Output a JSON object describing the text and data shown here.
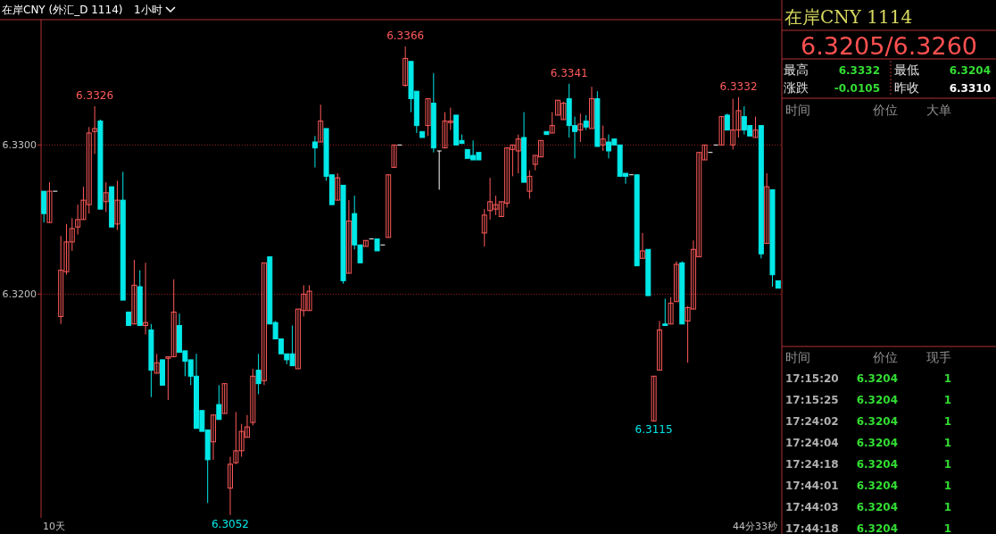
{
  "chart_data": [
    {
      "type": "candlestick",
      "title": "在岸CNY (外汇_D 1114)",
      "subtitle": "1小时",
      "categories": [
        null,
        null,
        null,
        null,
        null,
        null,
        null,
        null,
        null,
        null,
        null,
        null,
        null,
        null,
        null,
        null,
        null,
        null,
        null,
        null,
        null,
        null,
        null,
        null,
        null,
        null,
        null,
        null,
        null,
        null,
        null,
        null,
        null,
        null,
        null,
        null,
        null,
        null,
        null,
        null,
        null,
        null,
        null,
        null,
        null,
        null,
        null,
        null,
        null,
        null,
        null,
        null,
        null,
        null,
        null,
        null,
        null,
        null,
        null,
        null,
        null,
        null,
        null,
        null,
        null,
        null,
        null,
        null,
        null,
        null,
        null,
        null,
        null,
        null,
        null,
        null,
        null,
        null,
        null,
        null,
        null,
        null,
        null,
        null,
        null,
        null,
        null,
        null,
        null,
        null,
        null,
        null,
        null,
        null,
        null,
        null,
        null,
        null,
        null,
        null,
        null,
        null,
        null,
        null,
        null,
        null,
        null,
        null,
        null,
        null,
        null,
        null,
        null,
        null,
        null,
        null,
        null,
        null,
        null,
        null,
        null,
        null,
        null,
        null,
        null,
        null,
        null,
        null,
        null,
        null,
        null
      ],
      "ohlc": [
        [
          6.3269,
          6.3269,
          6.3248,
          6.3254
        ],
        [
          6.3248,
          6.3275,
          6.3248,
          6.3269
        ],
        [
          6.3269,
          6.3269,
          6.3269,
          6.3269
        ],
        [
          6.3185,
          6.3239,
          6.318,
          6.3216
        ],
        [
          6.3215,
          6.3247,
          6.3213,
          6.3235
        ],
        [
          6.3235,
          6.3251,
          6.3229,
          6.3244
        ],
        [
          6.3245,
          6.326,
          6.324,
          6.325
        ],
        [
          6.325,
          6.3272,
          6.325,
          6.3263
        ],
        [
          6.326,
          6.3312,
          6.3254,
          6.3308
        ],
        [
          6.3309,
          6.3326,
          6.3294,
          6.3311
        ],
        [
          6.3316,
          6.3317,
          6.3257,
          6.3257
        ],
        [
          6.3262,
          6.3275,
          6.3255,
          6.3268
        ],
        [
          6.3272,
          6.3272,
          6.3245,
          6.3245
        ],
        [
          6.3247,
          6.3276,
          6.3243,
          6.3263
        ],
        [
          6.3263,
          6.3282,
          6.3196,
          6.3196
        ],
        [
          6.3188,
          6.3188,
          6.3179,
          6.3179
        ],
        [
          6.318,
          6.3223,
          6.318,
          6.3206
        ],
        [
          6.3205,
          6.3216,
          6.3179,
          6.3179
        ],
        [
          6.3179,
          6.3221,
          6.3173,
          6.3181
        ],
        [
          6.3176,
          6.318,
          6.3131,
          6.3149
        ],
        [
          6.3147,
          6.316,
          6.3147,
          6.3154
        ],
        [
          6.3156,
          6.3156,
          6.3139,
          6.3139
        ],
        [
          6.3157,
          6.3158,
          6.3129,
          6.3158
        ],
        [
          6.3158,
          6.321,
          6.3158,
          6.3188
        ],
        [
          6.3179,
          6.3187,
          6.3161,
          6.3161
        ],
        [
          6.3162,
          6.3162,
          6.3145,
          6.3155
        ],
        [
          6.3156,
          6.3156,
          6.3139,
          6.3145
        ],
        [
          6.3145,
          6.316,
          6.311,
          6.311
        ],
        [
          6.3122,
          6.3122,
          6.3108,
          6.3108
        ],
        [
          6.3109,
          6.3109,
          6.306,
          6.3089
        ],
        [
          6.3101,
          6.3119,
          6.3089,
          6.3119
        ],
        [
          6.3126,
          6.3139,
          6.3116,
          6.3116
        ],
        [
          6.312,
          6.314,
          6.312,
          6.314
        ],
        [
          6.307,
          6.3091,
          6.3052,
          6.3086
        ],
        [
          6.3087,
          6.3121,
          6.3086,
          6.3095
        ],
        [
          6.3095,
          6.3113,
          6.3091,
          6.3108
        ],
        [
          6.3104,
          6.3119,
          6.3104,
          6.3111
        ],
        [
          6.3114,
          6.315,
          6.3112,
          6.3145
        ],
        [
          6.3149,
          6.316,
          6.3133,
          6.314
        ],
        [
          6.3142,
          6.3221,
          6.3139,
          6.3221
        ],
        [
          6.3225,
          6.3225,
          6.318,
          6.318
        ],
        [
          6.3181,
          6.3182,
          6.317,
          6.317
        ],
        [
          6.317,
          6.317,
          6.316,
          6.316
        ],
        [
          6.316,
          6.316,
          6.3153,
          6.3156
        ],
        [
          6.316,
          6.3179,
          6.3152,
          6.3152
        ],
        [
          6.315,
          6.319,
          6.315,
          6.319
        ],
        [
          6.3189,
          6.3206,
          6.3185,
          6.32
        ],
        [
          6.3189,
          6.3206,
          6.3189,
          6.3202
        ],
        [
          6.3302,
          6.3306,
          6.3285,
          6.3298
        ],
        [
          6.3302,
          6.3327,
          6.3302,
          6.3316
        ],
        [
          6.3311,
          6.3311,
          6.3276,
          6.3279
        ],
        [
          6.328,
          6.328,
          6.326,
          6.326
        ],
        [
          6.3263,
          6.3281,
          6.3263,
          6.3278
        ],
        [
          6.3273,
          6.3273,
          6.3207,
          6.3209
        ],
        [
          6.3214,
          6.3263,
          6.3214,
          6.3249
        ],
        [
          6.3254,
          6.3266,
          6.323,
          6.3233
        ],
        [
          6.3233,
          6.3233,
          6.3221,
          6.3221
        ],
        [
          6.3232,
          6.3236,
          6.3232,
          6.3236
        ],
        [
          6.3237,
          6.3237,
          6.3237,
          6.3237
        ],
        [
          6.3237,
          6.3237,
          6.3229,
          6.3229
        ],
        [
          6.3233,
          6.3233,
          6.3233,
          6.3233
        ],
        [
          6.3238,
          6.328,
          6.3238,
          6.328
        ],
        [
          6.3285,
          6.33,
          6.3285,
          6.33
        ],
        [
          6.33,
          6.33,
          6.33,
          6.33
        ],
        [
          6.334,
          6.3366,
          6.3339,
          6.3358
        ],
        [
          6.3356,
          6.3356,
          6.3322,
          6.3331
        ],
        [
          6.3336,
          6.3336,
          6.3308,
          6.3313
        ],
        [
          6.3309,
          6.3309,
          6.3305,
          6.3305
        ],
        [
          6.3313,
          6.3331,
          6.3306,
          6.3331
        ],
        [
          6.3328,
          6.3348,
          6.3295,
          6.3298
        ],
        [
          6.3296,
          6.3296,
          6.327,
          6.3296
        ],
        [
          6.3298,
          6.3322,
          6.3298,
          6.3316
        ],
        [
          6.3315,
          6.3325,
          6.331,
          6.3316
        ],
        [
          6.332,
          6.332,
          6.33,
          6.33
        ],
        [
          6.3303,
          6.3307,
          6.3301,
          6.3301
        ],
        [
          6.3297,
          6.3297,
          6.3291,
          6.3291
        ],
        [
          6.3293,
          6.3303,
          6.329,
          6.329
        ],
        [
          6.3295,
          6.3295,
          6.329,
          6.329
        ],
        [
          6.3241,
          6.3257,
          6.3232,
          6.3253
        ],
        [
          6.3256,
          6.3278,
          6.325,
          6.3262
        ],
        [
          6.3257,
          6.3266,
          6.3253,
          6.326
        ],
        [
          6.3252,
          6.3262,
          6.3252,
          6.3262
        ],
        [
          6.3261,
          6.3298,
          6.3258,
          6.3298
        ],
        [
          6.3297,
          6.33,
          6.3279,
          6.33
        ],
        [
          6.3296,
          6.3307,
          6.3281,
          6.3304
        ],
        [
          6.3305,
          6.3322,
          6.3275,
          6.3275
        ],
        [
          6.3269,
          6.3283,
          6.3264,
          6.3279
        ],
        [
          6.3287,
          6.3293,
          6.3283,
          6.3293
        ],
        [
          6.3292,
          6.3303,
          6.3292,
          6.3303
        ],
        [
          6.3309,
          6.3309,
          6.3307,
          6.3307
        ],
        [
          6.3308,
          6.3322,
          6.3308,
          6.3313
        ],
        [
          6.332,
          6.333,
          6.332,
          6.333
        ],
        [
          6.3317,
          6.3329,
          6.3317,
          6.3328
        ],
        [
          6.3331,
          6.3341,
          6.3305,
          6.3313
        ],
        [
          6.3313,
          6.3319,
          6.3291,
          6.3309
        ],
        [
          6.331,
          6.3321,
          6.3302,
          6.3314
        ],
        [
          6.3316,
          6.332,
          6.331,
          6.3312
        ],
        [
          6.3311,
          6.3339,
          6.3311,
          6.3331
        ],
        [
          6.3331,
          6.3336,
          6.3299,
          6.3299
        ],
        [
          6.33,
          6.3313,
          6.3296,
          6.3304
        ],
        [
          6.3302,
          6.3307,
          6.3291,
          6.3296
        ],
        [
          6.3304,
          6.3304,
          6.33,
          6.33
        ],
        [
          6.33,
          6.33,
          6.3279,
          6.3279
        ],
        [
          6.3281,
          6.3281,
          6.3274,
          6.3279
        ],
        [
          6.328,
          6.328,
          6.328,
          6.328
        ],
        [
          6.328,
          6.328,
          6.3219,
          6.3219
        ],
        [
          6.3224,
          6.3241,
          6.3224,
          6.3229
        ],
        [
          6.323,
          6.323,
          6.3199,
          6.3199
        ],
        [
          6.3115,
          6.3145,
          6.3115,
          6.3145
        ],
        [
          6.3149,
          6.3182,
          6.3149,
          6.3176
        ],
        [
          6.318,
          6.3197,
          6.3179,
          6.3179
        ],
        [
          6.318,
          6.3198,
          6.318,
          6.3194
        ],
        [
          6.3195,
          6.3222,
          6.3195,
          6.322
        ],
        [
          6.3221,
          6.3222,
          6.318,
          6.318
        ],
        [
          6.3182,
          6.3192,
          6.3154,
          6.3191
        ],
        [
          6.319,
          6.3236,
          6.319,
          6.323
        ],
        [
          6.3225,
          6.3295,
          6.3225,
          6.3295
        ],
        [
          6.329,
          6.33,
          6.329,
          6.33
        ],
        [
          6.3295,
          6.3295,
          6.3295,
          6.3295
        ],
        [
          6.33,
          6.33,
          6.33,
          6.33
        ],
        [
          6.33,
          6.3319,
          6.33,
          6.3319
        ],
        [
          6.332,
          6.3321,
          6.331,
          6.331
        ],
        [
          6.33,
          6.3331,
          6.3297,
          6.331
        ],
        [
          6.331,
          6.3332,
          6.3305,
          6.3323
        ],
        [
          6.3319,
          6.3326,
          6.3307,
          6.331
        ],
        [
          6.3313,
          6.3313,
          6.3306,
          6.3306
        ],
        [
          6.3305,
          6.3319,
          6.3305,
          6.331
        ],
        [
          6.3313,
          6.3313,
          6.3224,
          6.3227
        ],
        [
          6.3234,
          6.3281,
          6.3234,
          6.3272
        ],
        [
          6.327,
          6.327,
          6.3205,
          6.3213
        ],
        [
          6.3209,
          6.3209,
          6.3204,
          6.3204
        ]
      ],
      "ylim": [
        6.305,
        6.3384
      ],
      "yticks": [
        {
          "value": 6.33,
          "label": "6.3300"
        },
        {
          "value": 6.32,
          "label": "6.3200"
        }
      ],
      "grid": "y",
      "annotations": [
        {
          "text": "6.3326",
          "y": 6.3326
        },
        {
          "text": "6.3366",
          "y": 6.3366
        },
        {
          "text": "6.3341",
          "y": 6.3341
        },
        {
          "text": "6.3332",
          "y": 6.3332
        },
        {
          "text": "6.3052",
          "y": 6.3052
        },
        {
          "text": "6.3115",
          "y": 6.3115
        },
        "10天",
        "44分33秒"
      ]
    },
    {
      "type": "other",
      "title": "在岸CNY   1114",
      "subtitle": "6.3205/6.3260",
      "annotations": [
        "最高",
        "6.3332",
        "最低",
        "6.3204",
        "涨跌",
        "-0.0105",
        "昨收",
        "6.3310",
        "时间",
        "价位",
        "大单",
        "时间",
        "价位",
        "现手",
        "17:15:20",
        "6.3204",
        "1",
        "17:15:25",
        "6.3204",
        "1",
        "17:24:02",
        "6.3204",
        "1",
        "17:24:04",
        "6.3204",
        "1",
        "17:24:18",
        "6.3204",
        "1",
        "17:44:01",
        "6.3204",
        "1",
        "17:44:03",
        "6.3204",
        "1",
        "17:44:18",
        "6.3204",
        "1"
      ]
    }
  ]
}
